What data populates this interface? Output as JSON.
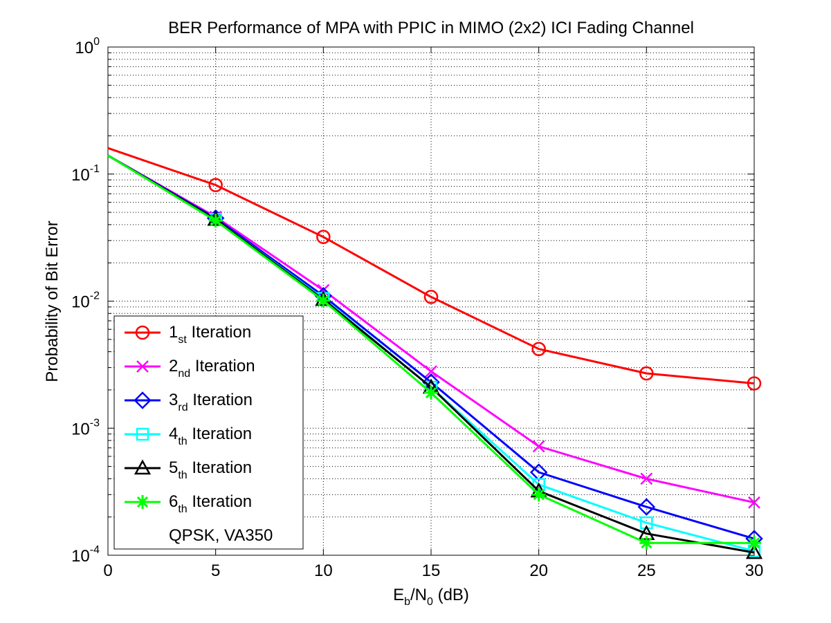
{
  "chart_data": {
    "type": "line",
    "title": "BER Performance of MPA with PPIC in MIMO (2x2) ICI Fading Channel",
    "xlabel": {
      "base1": "E",
      "sub1": "b",
      "mid": "/N",
      "sub2": "0",
      "tail": " (dB)"
    },
    "ylabel": "Probability of Bit Error",
    "xlim": [
      0,
      30
    ],
    "ylim": [
      0.0001,
      1
    ],
    "yscale": "log",
    "grid": true,
    "legend_position": "bottom-left",
    "x_ticks": [
      "0",
      "5",
      "10",
      "15",
      "20",
      "25",
      "30"
    ],
    "y_ticks": [
      {
        "value": 1,
        "base": "10",
        "exp": "0"
      },
      {
        "value": 0.1,
        "base": "10",
        "exp": "-1"
      },
      {
        "value": 0.01,
        "base": "10",
        "exp": "-2"
      },
      {
        "value": 0.001,
        "base": "10",
        "exp": "-3"
      },
      {
        "value": 0.0001,
        "base": "10",
        "exp": "-4"
      }
    ],
    "x": [
      0,
      5,
      10,
      15,
      20,
      25,
      30
    ],
    "series": [
      {
        "num": "1",
        "suffix": "st",
        "rest": " Iteration",
        "color": "#ff0000",
        "marker": "circle",
        "values": [
          0.16,
          0.082,
          0.032,
          0.0108,
          0.0042,
          0.0027,
          0.00225
        ]
      },
      {
        "num": "2",
        "suffix": "nd",
        "rest": " Iteration",
        "color": "#ff00ff",
        "marker": "x",
        "values": [
          0.14,
          0.046,
          0.0122,
          0.0028,
          0.00072,
          0.0004,
          0.00026
        ]
      },
      {
        "num": "3",
        "suffix": "rd",
        "rest": " Iteration",
        "color": "#0000ff",
        "marker": "diamond",
        "values": [
          0.14,
          0.045,
          0.011,
          0.0023,
          0.00045,
          0.00024,
          0.000135
        ]
      },
      {
        "num": "4",
        "suffix": "th",
        "rest": " Iteration",
        "color": "#00ffff",
        "marker": "square",
        "values": [
          0.14,
          0.044,
          0.0105,
          0.0021,
          0.00036,
          0.00018,
          0.000108
        ]
      },
      {
        "num": "5",
        "suffix": "th",
        "rest": " Iteration",
        "color": "#000000",
        "marker": "triangle",
        "values": [
          0.14,
          0.044,
          0.0103,
          0.0021,
          0.00032,
          0.000148,
          0.000105
        ]
      },
      {
        "num": "6",
        "suffix": "th",
        "rest": " Iteration",
        "color": "#00ff00",
        "marker": "asterisk",
        "values": [
          0.14,
          0.043,
          0.0101,
          0.0019,
          0.0003,
          0.000125,
          0.000125
        ]
      }
    ],
    "annotation": "QPSK, VA350"
  }
}
